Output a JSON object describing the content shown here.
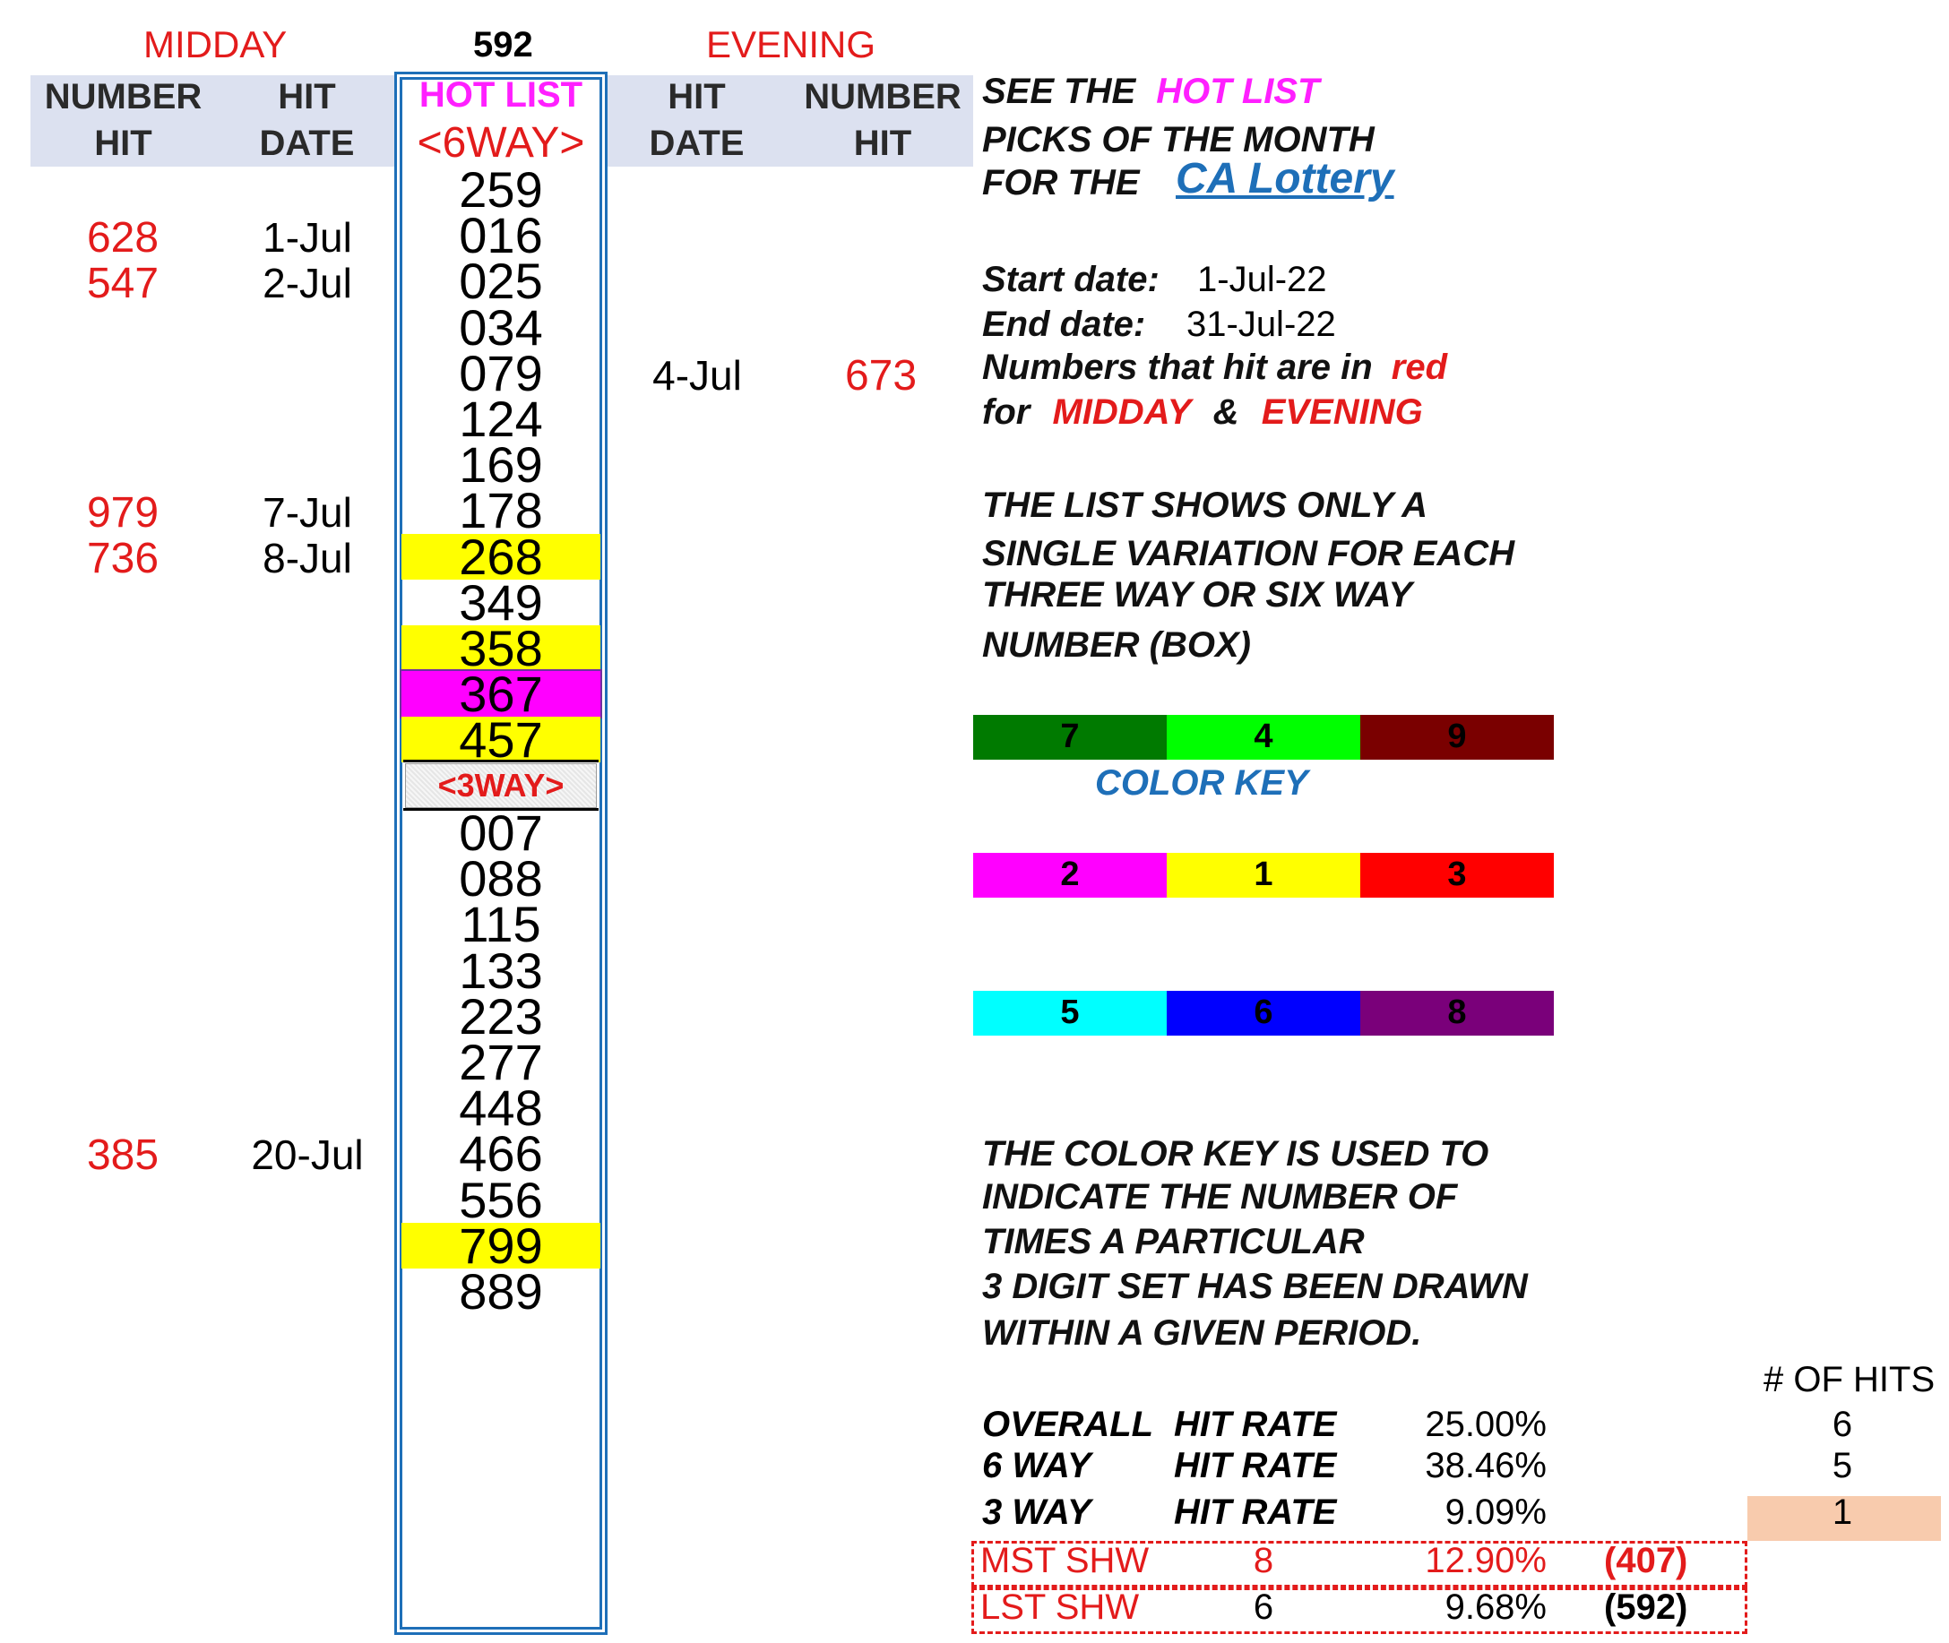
{
  "top_labels": {
    "midday": "MIDDAY",
    "center_number": "592",
    "evening": "EVENING"
  },
  "column_headers": {
    "left_number": [
      "NUMBER",
      "HIT"
    ],
    "left_date": [
      "HIT",
      "DATE"
    ],
    "hot_list": "HOT LIST",
    "six_way": "<6WAY>",
    "right_date": [
      "HIT",
      "DATE"
    ],
    "right_number": [
      "NUMBER",
      "HIT"
    ]
  },
  "hot_list_six_way": [
    {
      "value": "259",
      "highlight": ""
    },
    {
      "value": "016",
      "highlight": ""
    },
    {
      "value": "025",
      "highlight": ""
    },
    {
      "value": "034",
      "highlight": ""
    },
    {
      "value": "079",
      "highlight": ""
    },
    {
      "value": "124",
      "highlight": ""
    },
    {
      "value": "169",
      "highlight": ""
    },
    {
      "value": "178",
      "highlight": ""
    },
    {
      "value": "268",
      "highlight": "#ffff00"
    },
    {
      "value": "349",
      "highlight": ""
    },
    {
      "value": "358",
      "highlight": "#ffff00"
    },
    {
      "value": "367",
      "highlight": "#ff00ff"
    },
    {
      "value": "457",
      "highlight": "#ffff00"
    }
  ],
  "three_way_label": "<3WAY>",
  "hot_list_three_way": [
    {
      "value": "007",
      "highlight": ""
    },
    {
      "value": "088",
      "highlight": ""
    },
    {
      "value": "115",
      "highlight": ""
    },
    {
      "value": "133",
      "highlight": ""
    },
    {
      "value": "223",
      "highlight": ""
    },
    {
      "value": "277",
      "highlight": ""
    },
    {
      "value": "448",
      "highlight": ""
    },
    {
      "value": "466",
      "highlight": ""
    },
    {
      "value": "556",
      "highlight": ""
    },
    {
      "value": "799",
      "highlight": "#ffff00"
    },
    {
      "value": "889",
      "highlight": ""
    }
  ],
  "midday_hits": [
    {
      "number": "628",
      "date": "1-Jul"
    },
    {
      "number": "547",
      "date": "2-Jul"
    },
    {
      "number": "979",
      "date": "7-Jul"
    },
    {
      "number": "736",
      "date": "8-Jul"
    },
    {
      "number": "385",
      "date": "20-Jul"
    }
  ],
  "evening_hits": [
    {
      "number": "673",
      "date": "4-Jul"
    }
  ],
  "info": {
    "see_the": "SEE THE",
    "hot_list": "HOT LIST",
    "picks_of_month": "PICKS OF THE MONTH",
    "for_the": "FOR THE",
    "lottery_link": "CA Lottery",
    "start_label": "Start date:",
    "start_value": "1-Jul-22",
    "end_label": "End date:",
    "end_value": "31-Jul-22",
    "hit_line_a": "Numbers that hit are in",
    "hit_line_red": "red",
    "for_word": "for",
    "midday": "MIDDAY",
    "amp": "&",
    "evening": "EVENING",
    "list_note": [
      "THE LIST SHOWS ONLY A",
      "SINGLE VARIATION FOR EACH",
      "THREE WAY OR SIX WAY",
      "NUMBER (BOX)"
    ],
    "color_key_title": "COLOR KEY",
    "color_key_note": [
      "THE COLOR KEY IS USED TO",
      "INDICATE THE NUMBER OF",
      "TIMES A PARTICULAR",
      "3 DIGIT SET HAS BEEN DRAWN",
      "WITHIN A GIVEN PERIOD."
    ]
  },
  "color_key_rows": [
    [
      {
        "label": "7",
        "color": "#007a00"
      },
      {
        "label": "4",
        "color": "#00ff00"
      },
      {
        "label": "9",
        "color": "#7a0000"
      }
    ],
    [
      {
        "label": "2",
        "color": "#ff00ff"
      },
      {
        "label": "1",
        "color": "#ffff00"
      },
      {
        "label": "3",
        "color": "#ff0000"
      }
    ],
    [
      {
        "label": "5",
        "color": "#00ffff"
      },
      {
        "label": "6",
        "color": "#0000ff"
      },
      {
        "label": "8",
        "color": "#7a007a"
      }
    ]
  ],
  "stats": {
    "hits_header": "# OF HITS",
    "rows": [
      {
        "type": "OVERALL",
        "label": "HIT RATE",
        "rate": "25.00%",
        "hits": "6"
      },
      {
        "type": "6 WAY",
        "label": "HIT RATE",
        "rate": "38.46%",
        "hits": "5"
      },
      {
        "type": "3 WAY",
        "label": "HIT RATE",
        "rate": "9.09%",
        "hits": "1"
      }
    ],
    "most_shown": {
      "label": "MST SHW",
      "count": "8",
      "rate": "12.90%",
      "number": "(407)"
    },
    "least_shown": {
      "label": "LST SHW",
      "count": "6",
      "rate": "9.68%",
      "number": "(592)"
    }
  }
}
